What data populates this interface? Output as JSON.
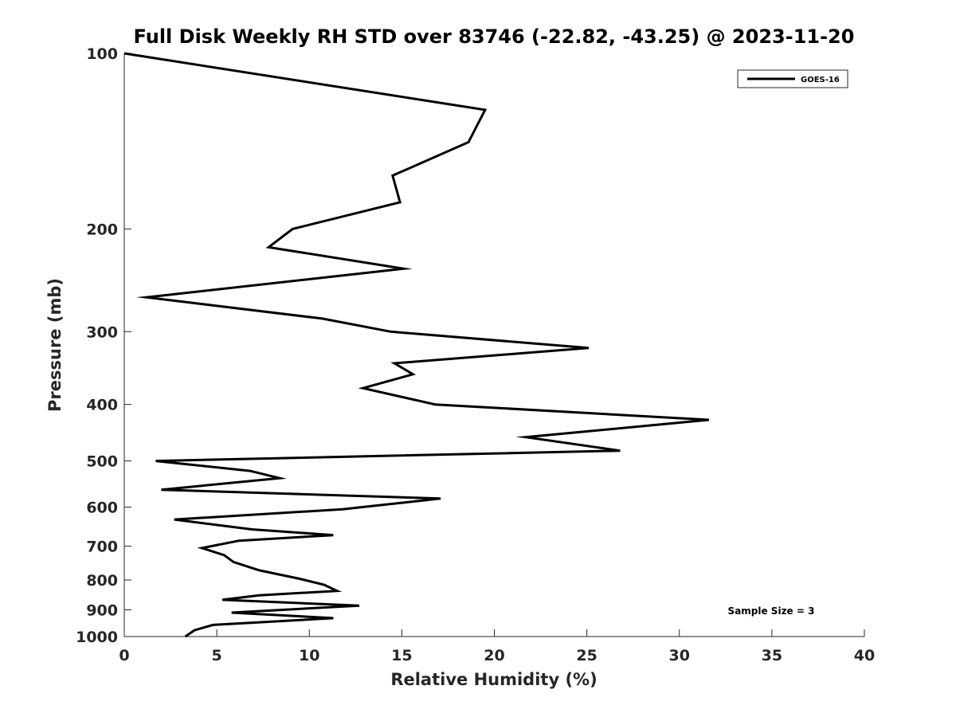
{
  "chart_data": {
    "type": "line",
    "title": "Full Disk Weekly RH STD over 83746 (-22.82, -43.25) @ 2023-11-20",
    "xlabel": "Relative Humidity (%)",
    "ylabel": "Pressure (mb)",
    "xlim": [
      0,
      40
    ],
    "ylim": [
      100,
      1000
    ],
    "y_scale": "log",
    "y_reversed": true,
    "grid": false,
    "x_ticks": [
      0,
      5,
      10,
      15,
      20,
      25,
      30,
      35,
      40
    ],
    "x_tick_labels": [
      "0",
      "5",
      "10",
      "15",
      "20",
      "25",
      "30",
      "35",
      "40"
    ],
    "y_ticks": [
      100,
      200,
      300,
      400,
      500,
      600,
      700,
      800,
      900,
      1000
    ],
    "y_tick_labels": [
      "100",
      "200",
      "300",
      "400",
      "500",
      "600",
      "700",
      "800",
      "900",
      "1000"
    ],
    "legend_position": "top-right",
    "annotation": "Sample Size = 3",
    "series": [
      {
        "name": "GOES-16",
        "color": "#000000",
        "x": [
          0.0,
          19.5,
          18.6,
          14.5,
          14.9,
          9.1,
          7.8,
          15.1,
          1.2,
          10.7,
          14.4,
          25.1,
          14.6,
          15.6,
          12.9,
          16.8,
          31.6,
          21.7,
          26.8,
          1.7,
          6.8,
          8.4,
          2.0,
          17.1,
          11.8,
          2.7,
          6.9,
          11.3,
          6.2,
          4.2,
          5.4,
          5.9,
          7.3,
          9.4,
          10.8,
          11.5,
          7.3,
          5.3,
          12.7,
          5.8,
          11.3,
          4.8,
          3.8,
          3.3
        ],
        "y": [
          100,
          125,
          142,
          162,
          180,
          200,
          215,
          234,
          262,
          285,
          300,
          320,
          340,
          355,
          375,
          400,
          425,
          455,
          480,
          500,
          520,
          535,
          560,
          580,
          605,
          630,
          655,
          670,
          685,
          705,
          725,
          745,
          770,
          795,
          815,
          835,
          850,
          865,
          885,
          910,
          930,
          955,
          975,
          1000
        ]
      }
    ]
  }
}
